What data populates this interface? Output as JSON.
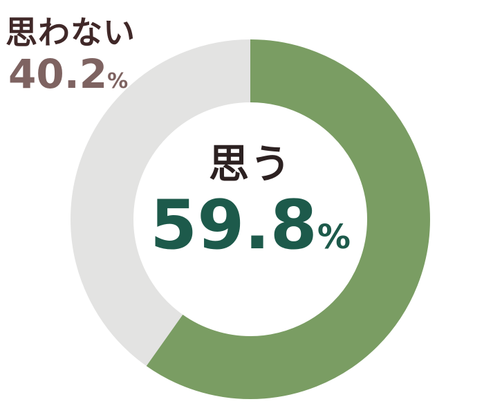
{
  "chart_data": {
    "type": "pie",
    "variant": "donut",
    "start_angle_deg": -90,
    "direction": "clockwise",
    "segments": [
      {
        "label": "思う",
        "value": 59.8,
        "color": "#7A9D63"
      },
      {
        "label": "思わない",
        "value": 40.2,
        "color": "#E3E3E2"
      }
    ],
    "center_label": {
      "label": "思う",
      "value": "59.8",
      "unit": "%"
    },
    "outside_label": {
      "label": "思わない",
      "value": "40.2",
      "unit": "%"
    }
  },
  "colors": {
    "background": "#FFFFFF",
    "segment_yes": "#7A9D63",
    "segment_no": "#E3E3E2",
    "center_value_text": "#1D5A4B",
    "center_label_text": "#2C2121",
    "outside_label_text": "#402828",
    "outside_value_text": "#7E6361"
  }
}
